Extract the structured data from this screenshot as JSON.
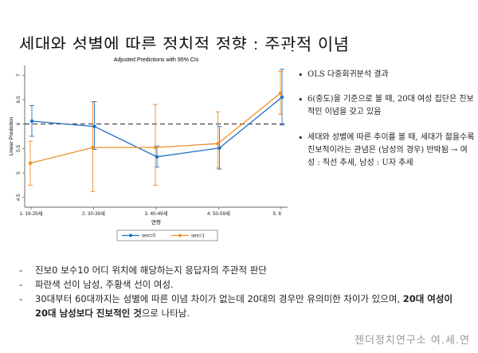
{
  "slide": {
    "title": "세대와 성별에 따른 정치적 정향 : 주관적 이념",
    "footer": "젠더정치연구소 여.세.연"
  },
  "bullets": [
    "OLS 다중회귀분석 결과",
    "6(중도)을 기준으로 볼 때, 20대 여성 집단은 진보적인 이념을 갖고 있음",
    "세대와 성별에 따른 추이를 볼 때, 세대가 젊을수록 진보적이라는 관념은 (남성의 경우) 반박됨 → 여성 : 직선 추세, 남성 : U자 추세"
  ],
  "notes": [
    {
      "parts": [
        {
          "text": "진보0 보수10 어디 위치에 해당하는지 응답자의 주관적 판단",
          "bold": false
        }
      ]
    },
    {
      "parts": [
        {
          "text": "파란색 선이 남성, 주황색 선이 여성.",
          "bold": false
        }
      ]
    },
    {
      "parts": [
        {
          "text": "30대부터 60대까지는 성별에 따른 이념 차이가 없는데 20대의 경우만 유의미한 차이가 있으며, ",
          "bold": false
        },
        {
          "text": "20대 여성이 20대 남성보다 진보적인 것",
          "bold": true
        },
        {
          "text": "으로 나타남.",
          "bold": false
        }
      ]
    }
  ],
  "chart_data": {
    "type": "line",
    "title": "Adjusted Predictions with 95% CIs",
    "xlabel": "연령",
    "ylabel": "Linear Prediction",
    "categories": [
      "1. 19-29세",
      "2. 30-39세",
      "3. 40-49세",
      "4. 50-59세",
      "5. 6"
    ],
    "ylim": [
      4.3,
      7.2
    ],
    "yticks": [
      4.5,
      5,
      5.5,
      6,
      6.5,
      7
    ],
    "reference_line": 6,
    "series": [
      {
        "name": "sex=0",
        "color": "#1f6fc8",
        "values": [
          6.06,
          5.95,
          5.33,
          5.51,
          6.55
        ],
        "ci_low": [
          5.75,
          5.48,
          5.12,
          5.08,
          5.98
        ],
        "ci_high": [
          6.38,
          6.46,
          5.55,
          5.95,
          7.12
        ]
      },
      {
        "name": "sex=1",
        "color": "#f0902a",
        "values": [
          5.2,
          5.52,
          5.52,
          5.6,
          6.63
        ],
        "ci_low": [
          4.75,
          4.62,
          4.75,
          5.1,
          6.2
        ],
        "ci_high": [
          5.65,
          6.45,
          6.4,
          6.25,
          7.08
        ]
      }
    ],
    "legend": {
      "position": "bottom"
    },
    "grid": false
  }
}
